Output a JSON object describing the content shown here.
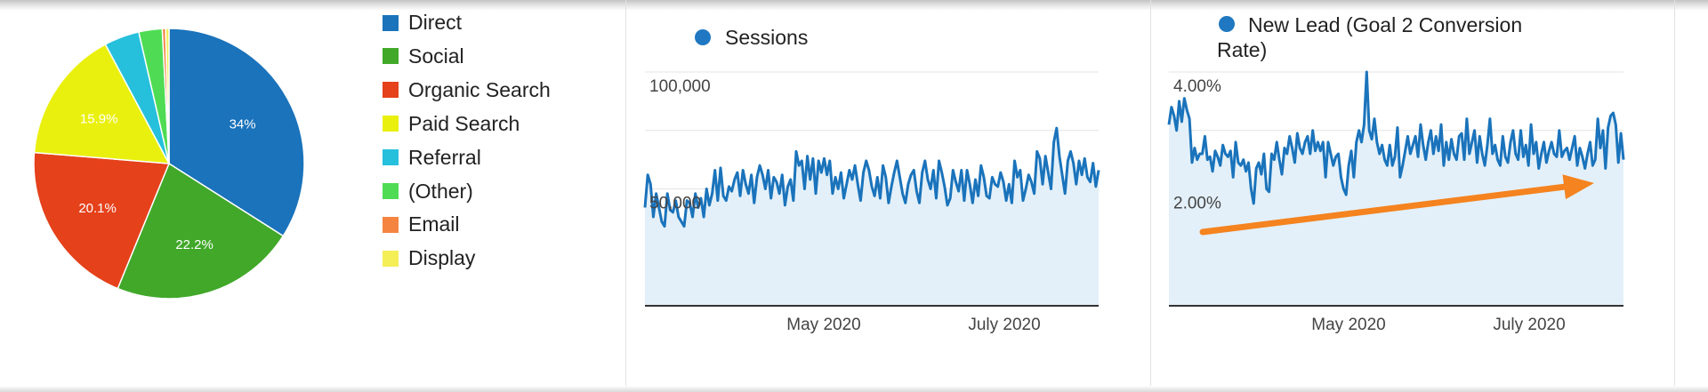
{
  "chart_data": [
    {
      "type": "pie",
      "categories": [
        "Direct",
        "Social",
        "Organic Search",
        "Paid Search",
        "Referral",
        "(Other)",
        "Email",
        "Display"
      ],
      "values": [
        34,
        22.2,
        20.1,
        15.9,
        4.2,
        2.8,
        0.4,
        0.4
      ],
      "data_labels": [
        "34%",
        "22.2%",
        "20.1%",
        "15.9%",
        "",
        "",
        "",
        ""
      ],
      "colors": [
        "#1a73bb",
        "#41a829",
        "#e5411b",
        "#eaf00e",
        "#26c0dc",
        "#4fdc54",
        "#f58440",
        "#f4ee57"
      ],
      "legend_placement": "right"
    },
    {
      "type": "area",
      "series": [
        {
          "name": "Sessions",
          "values": [
            42000,
            56000,
            52000,
            38000,
            48000,
            42000,
            36000,
            34000,
            48000,
            41000,
            40000,
            45000,
            38000,
            36000,
            34000,
            45000,
            44000,
            38000,
            48000,
            42000,
            46000,
            38000,
            50000,
            43000,
            48000,
            58000,
            45000,
            59000,
            47000,
            45000,
            51000,
            49000,
            54000,
            57000,
            47000,
            58000,
            52000,
            48000,
            56000,
            44000,
            55000,
            60000,
            56000,
            50000,
            58000,
            46000,
            55000,
            53000,
            48000,
            56000,
            43000,
            51000,
            54000,
            45000,
            66000,
            60000,
            62000,
            50000,
            64000,
            54000,
            63000,
            48000,
            62000,
            57000,
            63000,
            56000,
            62000,
            48000,
            55000,
            50000,
            57000,
            46000,
            52000,
            58000,
            54000,
            60000,
            52000,
            45000,
            57000,
            62000,
            58000,
            51000,
            47000,
            55000,
            46000,
            60000,
            55000,
            44000,
            51000,
            57000,
            62000,
            55000,
            48000,
            44000,
            52000,
            56000,
            58000,
            49000,
            44000,
            57000,
            62000,
            54000,
            50000,
            58000,
            46000,
            62000,
            57000,
            51000,
            43000,
            46000,
            58000,
            53000,
            49000,
            58000,
            45000,
            58000,
            52000,
            44000,
            54000,
            47000,
            60000,
            55000,
            47000,
            46000,
            55000,
            52000,
            51000,
            57000,
            53000,
            45000,
            52000,
            44000,
            62000,
            55000,
            58000,
            45000,
            50000,
            56000,
            53000,
            48000,
            66000,
            63000,
            52000,
            64000,
            57000,
            50000,
            70000,
            76000,
            64000,
            56000,
            48000,
            62000,
            66000,
            61000,
            52000,
            62000,
            56000,
            63000,
            55000,
            53000,
            61000,
            51000,
            58000
          ]
        }
      ],
      "y_ticks": [
        "100,000",
        "50,000"
      ],
      "ylim": [
        0,
        100000
      ],
      "x_ticks": [
        "May 2020",
        "July 2020"
      ],
      "colors": {
        "line": "#1a73bb",
        "fill": "#e3f0f9",
        "grid": "#e4e4e4",
        "axis": "#333333"
      }
    },
    {
      "type": "area",
      "series": [
        {
          "name": "New Lead (Goal 2 Conversion Rate)",
          "values": [
            3.1,
            3.4,
            3.25,
            3.0,
            3.5,
            3.15,
            3.55,
            3.35,
            3.2,
            2.45,
            2.7,
            2.5,
            2.6,
            2.6,
            2.9,
            2.5,
            2.55,
            2.3,
            2.65,
            2.55,
            2.4,
            2.75,
            2.6,
            2.55,
            2.65,
            2.2,
            2.8,
            2.45,
            2.4,
            2.5,
            2.3,
            2.45,
            2.0,
            1.75,
            2.35,
            2.45,
            2.25,
            2.6,
            2.0,
            1.95,
            2.6,
            2.5,
            2.8,
            2.5,
            2.25,
            2.7,
            2.6,
            2.9,
            2.7,
            2.45,
            2.95,
            2.7,
            2.6,
            2.8,
            2.9,
            2.6,
            3.0,
            2.65,
            2.8,
            2.65,
            2.8,
            2.2,
            2.8,
            2.6,
            2.4,
            2.55,
            2.6,
            2.2,
            2.0,
            1.9,
            2.4,
            2.65,
            2.2,
            2.8,
            3.0,
            2.8,
            3.1,
            4.0,
            3.0,
            2.85,
            3.2,
            2.8,
            2.6,
            2.75,
            2.5,
            2.4,
            2.75,
            2.4,
            2.55,
            3.05,
            2.2,
            2.4,
            2.65,
            2.9,
            2.6,
            2.75,
            2.9,
            2.55,
            3.1,
            2.75,
            2.5,
            2.8,
            3.0,
            2.6,
            2.9,
            2.65,
            3.1,
            2.4,
            2.8,
            2.5,
            2.85,
            2.6,
            2.5,
            2.9,
            2.95,
            2.5,
            3.2,
            2.6,
            2.8,
            3.0,
            2.45,
            2.9,
            2.6,
            2.4,
            2.75,
            3.2,
            2.6,
            2.75,
            2.5,
            2.4,
            2.9,
            2.55,
            2.45,
            2.8,
            3.0,
            2.6,
            2.5,
            3.0,
            2.55,
            2.75,
            2.4,
            3.1,
            2.6,
            2.8,
            2.35,
            2.6,
            2.8,
            2.45,
            2.65,
            2.8,
            2.6,
            2.55,
            3.0,
            2.55,
            2.65,
            2.7,
            2.5,
            2.7,
            2.9,
            2.4,
            2.7,
            2.55,
            2.35,
            2.6,
            2.8,
            2.4,
            2.5,
            3.2,
            2.7,
            3.0,
            2.35,
            3.05,
            3.25,
            3.3,
            3.1,
            2.45,
            2.95,
            2.5
          ]
        }
      ],
      "y_ticks": [
        "4.00%",
        "2.00%"
      ],
      "ylim": [
        0,
        4.0
      ],
      "x_ticks": [
        "May 2020",
        "July 2020"
      ],
      "annotation": "upward trend arrow",
      "colors": {
        "line": "#1a73bb",
        "fill": "#e3f0f9",
        "grid": "#e4e4e4",
        "axis": "#333333",
        "arrow": "#f5831f"
      }
    }
  ]
}
